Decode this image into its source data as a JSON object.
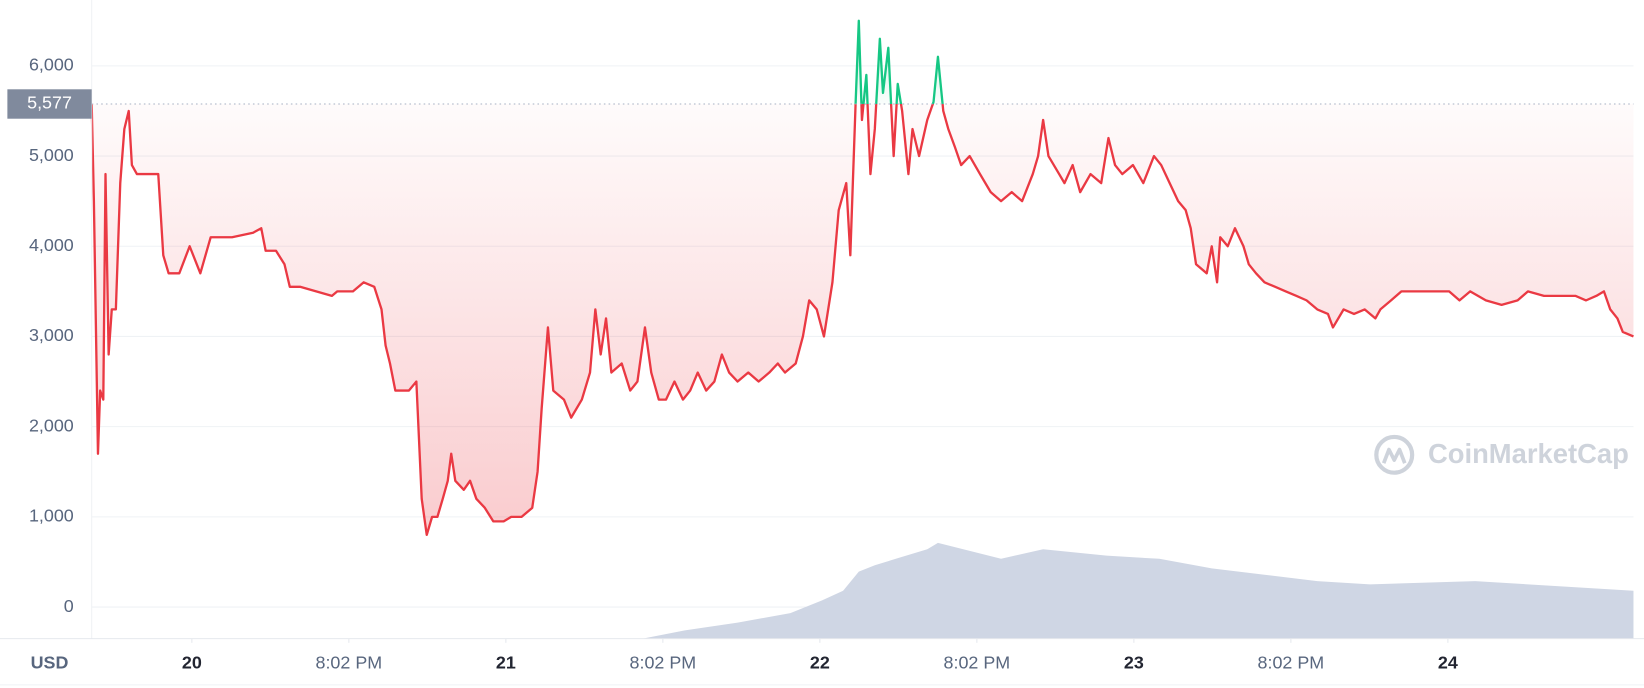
{
  "chart_data": {
    "type": "line",
    "x": [
      19.681,
      19.688,
      19.701,
      19.708,
      19.718,
      19.725,
      19.735,
      19.745,
      19.758,
      19.772,
      19.785,
      19.799,
      19.809,
      19.825,
      19.893,
      19.909,
      19.926,
      19.96,
      19.993,
      20.027,
      20.06,
      20.128,
      20.195,
      20.221,
      20.235,
      20.268,
      20.295,
      20.312,
      20.346,
      20.396,
      20.446,
      20.463,
      20.513,
      20.547,
      20.581,
      20.604,
      20.617,
      20.631,
      20.648,
      20.691,
      20.715,
      20.732,
      20.748,
      20.765,
      20.782,
      20.799,
      20.815,
      20.826,
      20.839,
      20.866,
      20.886,
      20.906,
      20.933,
      20.96,
      20.993,
      21.017,
      21.05,
      21.084,
      21.101,
      21.114,
      21.134,
      21.151,
      21.185,
      21.208,
      21.242,
      21.268,
      21.285,
      21.302,
      21.319,
      21.336,
      21.369,
      21.396,
      21.419,
      21.443,
      21.463,
      21.487,
      21.51,
      21.537,
      21.564,
      21.587,
      21.611,
      21.638,
      21.664,
      21.688,
      21.711,
      21.738,
      21.772,
      21.805,
      21.839,
      21.866,
      21.889,
      21.923,
      21.946,
      21.966,
      21.99,
      22.013,
      22.04,
      22.06,
      22.084,
      22.097,
      22.114,
      22.124,
      22.134,
      22.148,
      22.161,
      22.175,
      22.191,
      22.201,
      22.218,
      22.235,
      22.248,
      22.262,
      22.282,
      22.295,
      22.316,
      22.342,
      22.362,
      22.376,
      22.393,
      22.409,
      22.43,
      22.45,
      22.477,
      22.51,
      22.544,
      22.577,
      22.611,
      22.644,
      22.678,
      22.695,
      22.711,
      22.728,
      22.762,
      22.779,
      22.805,
      22.829,
      22.862,
      22.896,
      22.919,
      22.94,
      22.963,
      22.997,
      23.03,
      23.064,
      23.087,
      23.114,
      23.141,
      23.165,
      23.181,
      23.198,
      23.232,
      23.248,
      23.265,
      23.275,
      23.299,
      23.322,
      23.349,
      23.366,
      23.389,
      23.416,
      23.45,
      23.483,
      23.517,
      23.55,
      23.584,
      23.618,
      23.634,
      23.668,
      23.701,
      23.735,
      23.769,
      23.785,
      23.819,
      23.852,
      23.903,
      23.953,
      24.004,
      24.037,
      24.071,
      24.121,
      24.171,
      24.222,
      24.255,
      24.306,
      24.356,
      24.406,
      24.44,
      24.473,
      24.497,
      24.517,
      24.54,
      24.557,
      24.591
    ],
    "series": [
      {
        "color": "#ea3943",
        "up_color": "#16c784",
        "values": [
          5577,
          4500,
          1700,
          2400,
          2300,
          4800,
          2800,
          3300,
          3300,
          4700,
          5300,
          5500,
          4900,
          4800,
          4800,
          3900,
          3700,
          3700,
          4000,
          3700,
          4100,
          4100,
          4150,
          4200,
          3950,
          3950,
          3800,
          3550,
          3550,
          3500,
          3450,
          3500,
          3500,
          3600,
          3550,
          3300,
          2900,
          2700,
          2400,
          2400,
          2500,
          1200,
          800,
          1000,
          1000,
          1200,
          1400,
          1700,
          1400,
          1300,
          1400,
          1200,
          1100,
          950,
          950,
          1000,
          1000,
          1100,
          1500,
          2200,
          3100,
          2400,
          2300,
          2100,
          2300,
          2600,
          3300,
          2800,
          3200,
          2600,
          2700,
          2400,
          2500,
          3100,
          2600,
          2300,
          2300,
          2500,
          2300,
          2400,
          2600,
          2400,
          2500,
          2800,
          2600,
          2500,
          2600,
          2500,
          2600,
          2700,
          2600,
          2700,
          3000,
          3400,
          3300,
          3000,
          3600,
          4400,
          4700,
          3900,
          5600,
          6500,
          5400,
          5900,
          4800,
          5300,
          6300,
          5700,
          6200,
          5000,
          5800,
          5500,
          4800,
          5300,
          5000,
          5400,
          5600,
          6100,
          5500,
          5300,
          5100,
          4900,
          5000,
          4800,
          4600,
          4500,
          4600,
          4500,
          4800,
          5000,
          5400,
          5000,
          4800,
          4700,
          4900,
          4600,
          4800,
          4700,
          5200,
          4900,
          4800,
          4900,
          4700,
          5000,
          4900,
          4700,
          4500,
          4400,
          4200,
          3800,
          3700,
          4000,
          3600,
          4100,
          4000,
          4200,
          4000,
          3800,
          3700,
          3600,
          3550,
          3500,
          3450,
          3400,
          3300,
          3250,
          3100,
          3300,
          3250,
          3300,
          3200,
          3300,
          3400,
          3500,
          3500,
          3500,
          3500,
          3400,
          3500,
          3400,
          3350,
          3400,
          3500,
          3450,
          3450,
          3450,
          3400,
          3450,
          3500,
          3300,
          3200,
          3050,
          3000
        ]
      },
      {
        "color": "#cfd6e4",
        "axis": "y2",
        "x": [
          19.681,
          21.436,
          21.57,
          21.738,
          21.906,
          22.007,
          22.074,
          22.124,
          22.175,
          22.242,
          22.342,
          22.376,
          22.577,
          22.711,
          22.913,
          23.081,
          23.248,
          23.416,
          23.584,
          23.752,
          24.087,
          24.591
        ],
        "values": [
          0,
          0,
          1.3,
          2.5,
          4,
          6,
          7.5,
          10.5,
          11.5,
          12.5,
          14,
          15,
          12.5,
          14,
          13,
          12.5,
          11,
          10,
          9,
          8.5,
          9,
          7.5
        ]
      }
    ],
    "reference_line": {
      "value": 5577,
      "label": "5,577"
    },
    "xlim": [
      19.681,
      24.591
    ],
    "ylim": [
      -350,
      6730
    ],
    "y2lim": [
      0,
      100
    ],
    "yticks": [
      0,
      {
        "value": 1000,
        "label": "1,000"
      },
      {
        "value": 2000,
        "label": "2,000"
      },
      {
        "value": 3000,
        "label": "3,000"
      },
      {
        "value": 4000,
        "label": "4,000"
      },
      {
        "value": 5000,
        "label": "5,000"
      },
      {
        "value": 6000,
        "label": "6,000"
      }
    ],
    "xticks": [
      20,
      {
        "value": 20.5,
        "label": "8:02 PM"
      },
      21,
      {
        "value": 21.5,
        "label": "8:02 PM"
      },
      22,
      {
        "value": 22.5,
        "label": "8:02 PM"
      },
      23,
      {
        "value": 23.5,
        "label": "8:02 PM"
      },
      24
    ],
    "y_axis_label": "USD",
    "watermark": "CoinMarketCap",
    "grid": true
  }
}
